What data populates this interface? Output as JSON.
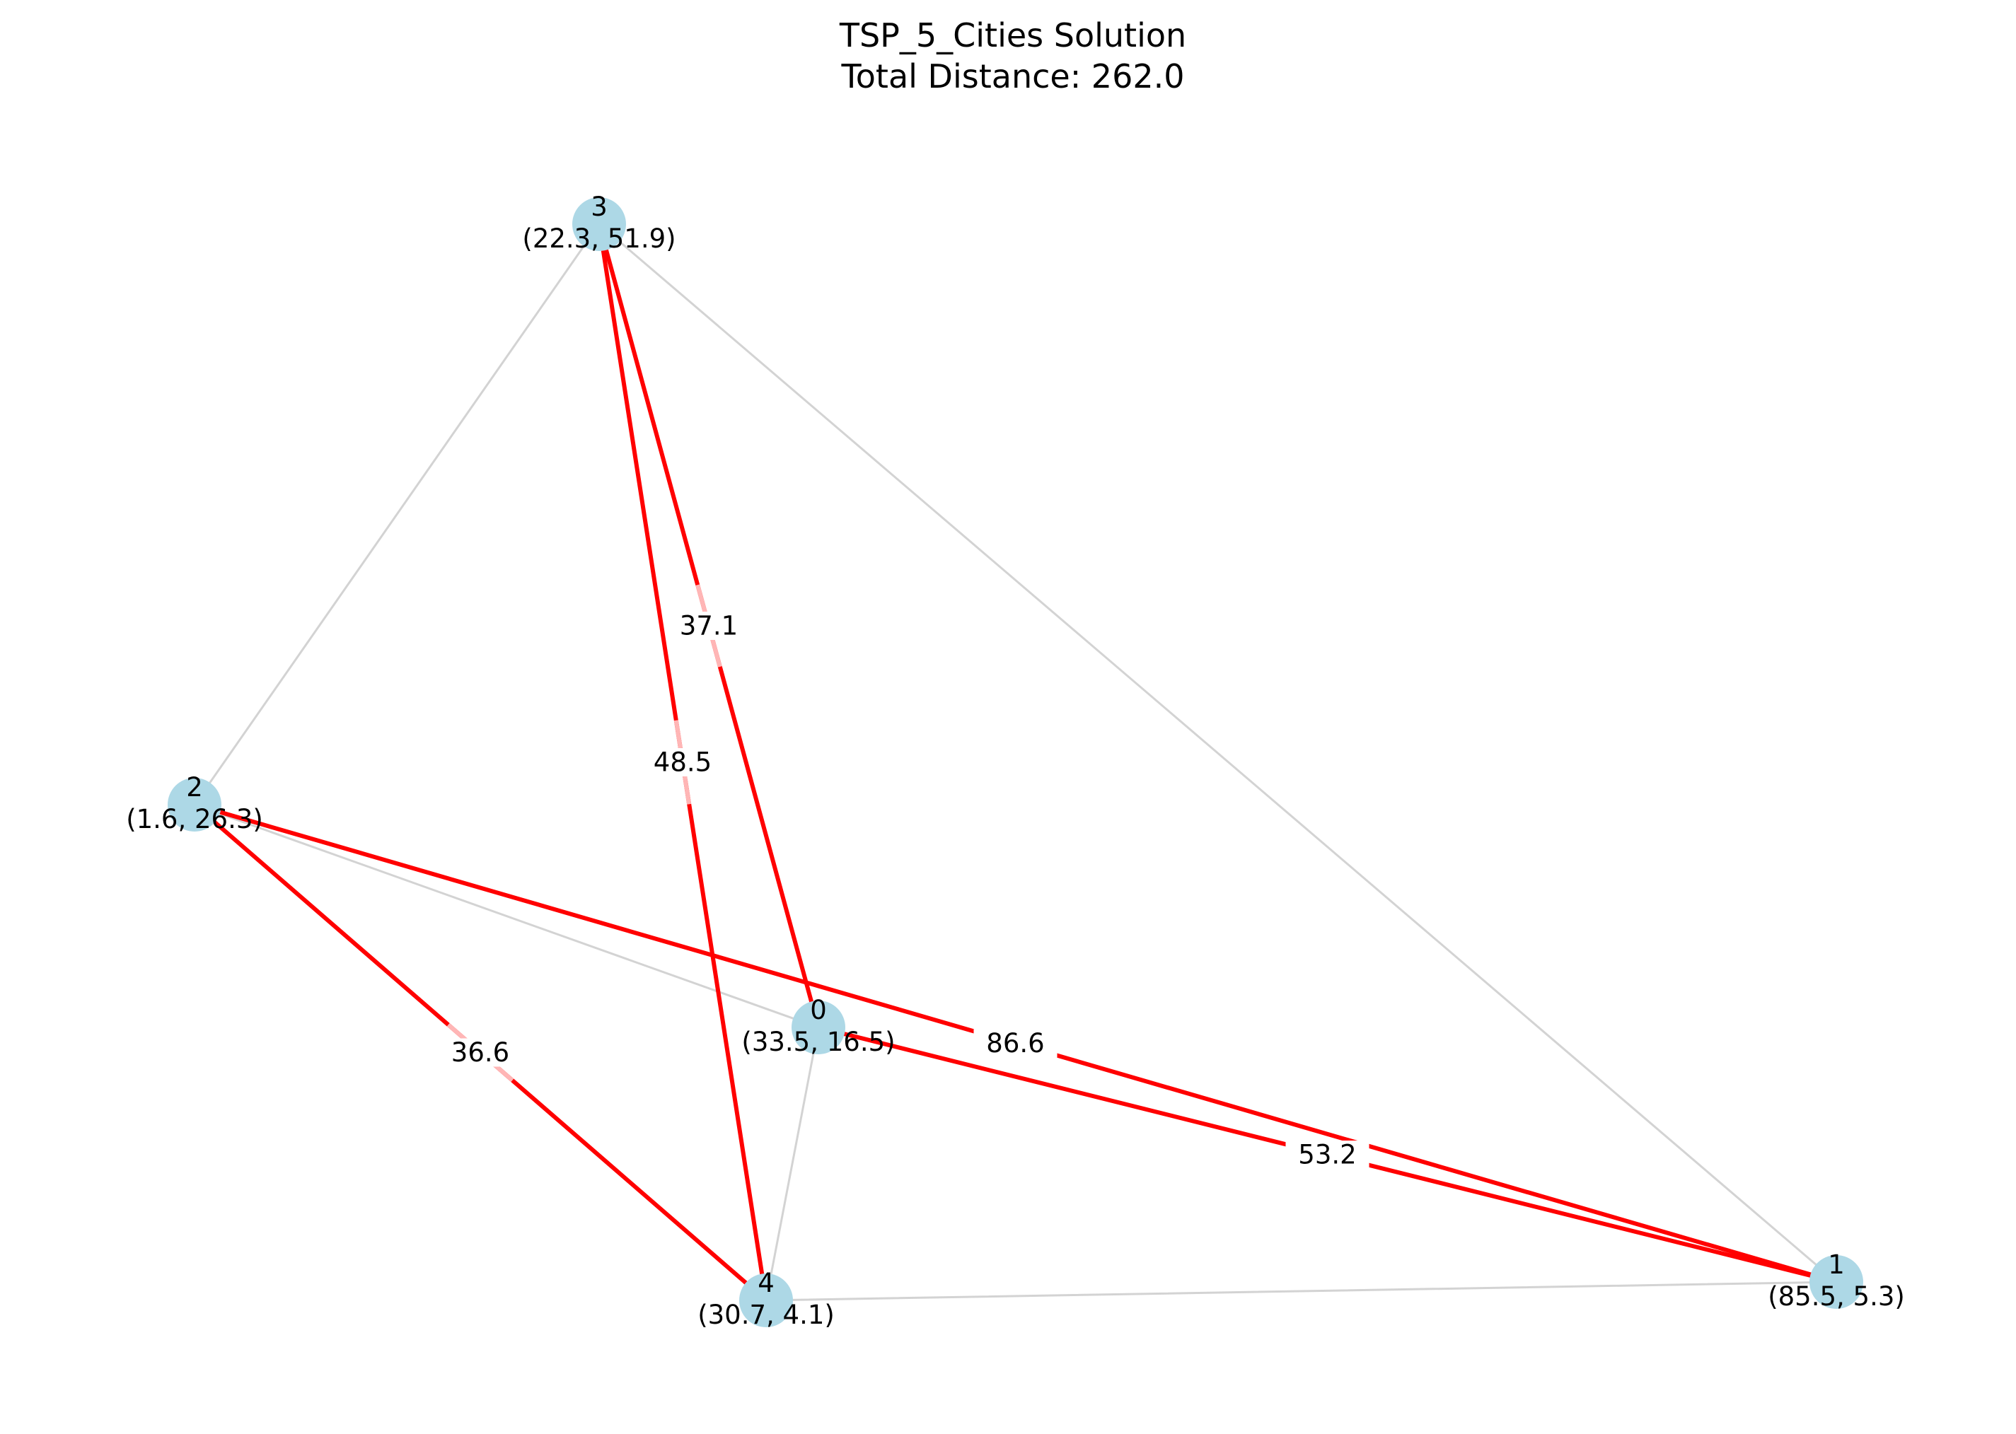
{
  "title": {
    "line1": "TSP_5_Cities Solution",
    "line2": "Total Distance: 262.0"
  },
  "colors": {
    "background": "#ffffff",
    "node_fill": "#add8e6",
    "edge_default": "#d3d3d3",
    "edge_route": "#ff0000",
    "edge_label_bg": "#ffb6b6"
  },
  "nodes": [
    {
      "id": "0",
      "name": "0",
      "coords": "(33.5, 16.5)"
    },
    {
      "id": "1",
      "name": "1",
      "coords": "(85.5, 5.3)"
    },
    {
      "id": "2",
      "name": "2",
      "coords": "(1.6, 26.3)"
    },
    {
      "id": "3",
      "name": "3",
      "coords": "(22.3, 51.9)"
    },
    {
      "id": "4",
      "name": "4",
      "coords": "(30.7, 4.1)"
    }
  ],
  "edges": [
    {
      "from": "3",
      "to": "2",
      "route": false
    },
    {
      "from": "3",
      "to": "1",
      "route": false
    },
    {
      "from": "2",
      "to": "0",
      "route": false
    },
    {
      "from": "0",
      "to": "4",
      "route": false
    },
    {
      "from": "4",
      "to": "1",
      "route": false
    },
    {
      "from": "3",
      "to": "0",
      "route": true,
      "label": "37.1"
    },
    {
      "from": "3",
      "to": "4",
      "route": true,
      "label": "48.5"
    },
    {
      "from": "2",
      "to": "4",
      "route": true,
      "label": "36.6"
    },
    {
      "from": "2",
      "to": "1",
      "route": true,
      "label": "86.6"
    },
    {
      "from": "0",
      "to": "1",
      "route": true,
      "label": "53.2"
    }
  ]
}
